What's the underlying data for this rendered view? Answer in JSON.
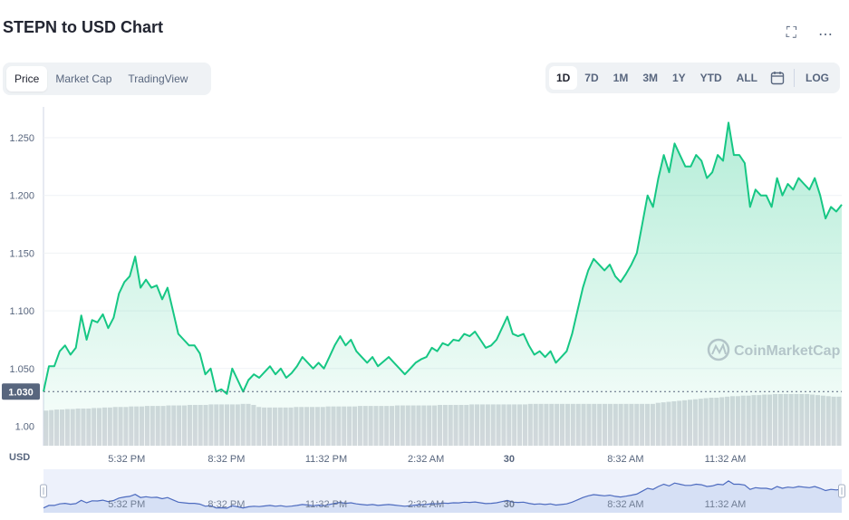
{
  "header": {
    "title": "STEPN to USD Chart",
    "fullscreen_icon": "fullscreen-icon",
    "more_icon": "more-icon"
  },
  "tabs": [
    {
      "label": "Price",
      "active": true
    },
    {
      "label": "Market Cap",
      "active": false
    },
    {
      "label": "TradingView",
      "active": false
    }
  ],
  "ranges": [
    {
      "label": "1D",
      "active": true
    },
    {
      "label": "7D",
      "active": false
    },
    {
      "label": "1M",
      "active": false
    },
    {
      "label": "3M",
      "active": false
    },
    {
      "label": "1Y",
      "active": false
    },
    {
      "label": "YTD",
      "active": false
    },
    {
      "label": "ALL",
      "active": false
    }
  ],
  "calendar_icon": "calendar-icon",
  "log_label": "LOG",
  "watermark": "CoinMarketCap",
  "colors": {
    "line": "#16c784",
    "volume": "#d6d9de",
    "grid": "#eff2f5",
    "label_bg": "#58667e"
  },
  "chart_data": {
    "type": "area",
    "currency_label": "USD",
    "y_ticks": [
      "1.00",
      "1.050",
      "1.100",
      "1.150",
      "1.200",
      "1.250"
    ],
    "y_tick_values": [
      1.0,
      1.05,
      1.1,
      1.15,
      1.2,
      1.25
    ],
    "ylim": [
      0.99,
      1.275
    ],
    "x_ticks": [
      "5:32 PM",
      "8:32 PM",
      "11:32 PM",
      "2:32 AM",
      "30",
      "8:32 AM",
      "11:32 AM"
    ],
    "x_tick_positions": [
      2.5,
      5.5,
      8.5,
      11.5,
      14.0,
      17.5,
      20.5
    ],
    "xlim": [
      0,
      24
    ],
    "reference_label": "1.030",
    "reference_value": 1.03,
    "series": [
      {
        "values": [
          1.03,
          1.052,
          1.052,
          1.065,
          1.07,
          1.062,
          1.068,
          1.096,
          1.075,
          1.092,
          1.09,
          1.097,
          1.085,
          1.094,
          1.115,
          1.125,
          1.13,
          1.147,
          1.12,
          1.127,
          1.12,
          1.122,
          1.11,
          1.12,
          1.1,
          1.08,
          1.075,
          1.07,
          1.07,
          1.063,
          1.045,
          1.05,
          1.03,
          1.032,
          1.028,
          1.05,
          1.04,
          1.03,
          1.04,
          1.045,
          1.042,
          1.047,
          1.052,
          1.045,
          1.05,
          1.042,
          1.046,
          1.052,
          1.06,
          1.055,
          1.05,
          1.055,
          1.05,
          1.06,
          1.07,
          1.078,
          1.07,
          1.075,
          1.065,
          1.06,
          1.055,
          1.06,
          1.052,
          1.056,
          1.06,
          1.055,
          1.05,
          1.045,
          1.05,
          1.055,
          1.058,
          1.06,
          1.068,
          1.065,
          1.072,
          1.07,
          1.075,
          1.074,
          1.08,
          1.078,
          1.082,
          1.075,
          1.068,
          1.07,
          1.075,
          1.085,
          1.095,
          1.08,
          1.078,
          1.08,
          1.07,
          1.062,
          1.065,
          1.06,
          1.065,
          1.055,
          1.06,
          1.065,
          1.08,
          1.1,
          1.12,
          1.135,
          1.145,
          1.14,
          1.135,
          1.14,
          1.13,
          1.125,
          1.132,
          1.14,
          1.15,
          1.175,
          1.2,
          1.19,
          1.215,
          1.235,
          1.22,
          1.245,
          1.235,
          1.225,
          1.225,
          1.235,
          1.23,
          1.215,
          1.22,
          1.235,
          1.23,
          1.263,
          1.235,
          1.235,
          1.228,
          1.19,
          1.205,
          1.2,
          1.2,
          1.19,
          1.215,
          1.2,
          1.21,
          1.205,
          1.215,
          1.21,
          1.205,
          1.215,
          1.2,
          1.18,
          1.19,
          1.186,
          1.192
        ]
      }
    ],
    "volume": [
      0.68,
      0.69,
      0.7,
      0.7,
      0.71,
      0.71,
      0.72,
      0.72,
      0.72,
      0.73,
      0.73,
      0.74,
      0.74,
      0.75,
      0.75,
      0.75,
      0.76,
      0.76,
      0.76,
      0.77,
      0.77,
      0.77,
      0.77,
      0.78,
      0.78,
      0.78,
      0.78,
      0.79,
      0.79,
      0.79,
      0.79,
      0.8,
      0.8,
      0.8,
      0.8,
      0.8,
      0.8,
      0.81,
      0.81,
      0.79,
      0.75,
      0.74,
      0.74,
      0.74,
      0.74,
      0.74,
      0.74,
      0.75,
      0.75,
      0.75,
      0.75,
      0.75,
      0.75,
      0.76,
      0.76,
      0.76,
      0.76,
      0.76,
      0.76,
      0.77,
      0.77,
      0.77,
      0.77,
      0.77,
      0.77,
      0.77,
      0.78,
      0.78,
      0.78,
      0.78,
      0.78,
      0.78,
      0.78,
      0.78,
      0.79,
      0.79,
      0.79,
      0.79,
      0.79,
      0.79,
      0.8,
      0.8,
      0.8,
      0.8,
      0.8,
      0.8,
      0.8,
      0.8,
      0.8,
      0.8,
      0.8,
      0.81,
      0.81,
      0.81,
      0.81,
      0.81,
      0.81,
      0.81,
      0.81,
      0.81,
      0.81,
      0.81,
      0.81,
      0.81,
      0.81,
      0.81,
      0.81,
      0.81,
      0.81,
      0.81,
      0.81,
      0.81,
      0.81,
      0.81,
      0.81,
      0.83,
      0.84,
      0.85,
      0.86,
      0.87,
      0.88,
      0.89,
      0.9,
      0.91,
      0.92,
      0.93,
      0.93,
      0.94,
      0.95,
      0.96,
      0.96,
      0.97,
      0.97,
      0.98,
      0.98,
      0.99,
      0.99,
      1.0,
      1.0,
      1.0,
      1.0,
      1.0,
      1.0,
      1.0,
      0.99,
      0.98,
      0.97,
      0.96,
      0.95,
      0.95
    ]
  }
}
